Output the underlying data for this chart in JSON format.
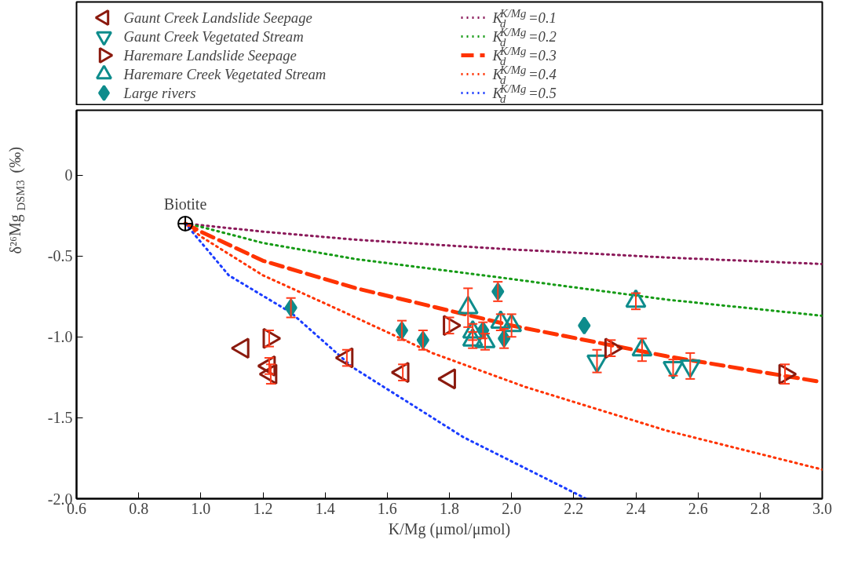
{
  "chart_data": {
    "type": "scatter",
    "xlabel": "K/Mg (μmol/μmol)",
    "ylabel": "δ²⁶Mg$_{DSM3}$ (‰)",
    "xlim": [
      0.6,
      3.0
    ],
    "ylim": [
      -2.0,
      0.4
    ],
    "xticks": [
      {
        "value": 0.6,
        "label": "0.6"
      },
      {
        "value": 0.8,
        "label": "0.8"
      },
      {
        "value": 1.0,
        "label": "1.0"
      },
      {
        "value": 1.2,
        "label": "1.2"
      },
      {
        "value": 1.4,
        "label": "1.4"
      },
      {
        "value": 1.6,
        "label": "1.6"
      },
      {
        "value": 1.8,
        "label": "1.8"
      },
      {
        "value": 2.0,
        "label": "2.0"
      },
      {
        "value": 2.2,
        "label": "2.2"
      },
      {
        "value": 2.4,
        "label": "2.4"
      },
      {
        "value": 2.6,
        "label": "2.6"
      },
      {
        "value": 2.8,
        "label": "2.8"
      },
      {
        "value": 3.0,
        "label": "3.0"
      }
    ],
    "yticks": [
      {
        "value": -2.0,
        "label": "-2.0"
      },
      {
        "value": -1.5,
        "label": "-1.5"
      },
      {
        "value": -1.0,
        "label": "-1.0"
      },
      {
        "value": -0.5,
        "label": "-0.5"
      },
      0
    ],
    "grid": false,
    "legend": "top",
    "annotations": [
      {
        "text": "Biotite",
        "x": 0.95,
        "y": -0.3
      }
    ],
    "series": [
      {
        "name": "Gaunt Creek Landslide Seepage",
        "marker": "triangle-left",
        "color": "#8b1a0e",
        "x": [
          1.135,
          1.22,
          1.225,
          1.47,
          1.65,
          1.8
        ],
        "values": [
          -1.07,
          -1.18,
          -1.23,
          -1.13,
          -1.22,
          -1.26
        ],
        "errors": [
          null,
          0.05,
          0.06,
          0.05,
          0.05,
          null
        ]
      },
      {
        "name": "Gaunt Creek Vegetated Stream",
        "marker": "triangle-down",
        "color": "#0e8c8c",
        "x": [
          2.275,
          2.52,
          2.575
        ],
        "values": [
          -1.15,
          -1.19,
          -1.18
        ],
        "errors": [
          0.07,
          0.05,
          0.08
        ]
      },
      {
        "name": "Haremare Landslide Seepage",
        "marker": "triangle-right",
        "color": "#8b1a0e",
        "x": [
          1.22,
          1.8,
          2.32,
          2.88
        ],
        "values": [
          -1.01,
          -0.93,
          -1.07,
          -1.23
        ],
        "errors": [
          0.05,
          0.05,
          0.05,
          0.06
        ]
      },
      {
        "name": "Haremare Creek Vegetated Stream",
        "marker": "triangle",
        "color": "#0e8c8c",
        "x": [
          1.86,
          1.875,
          1.875,
          1.915,
          1.965,
          2.0,
          2.4,
          2.42
        ],
        "values": [
          -0.82,
          -0.97,
          -1.02,
          -1.03,
          -0.91,
          -0.93,
          -0.78,
          -1.08
        ],
        "errors": [
          0.12,
          0.05,
          0.05,
          0.05,
          0.05,
          0.07,
          0.05,
          0.07
        ]
      },
      {
        "name": "Large rivers",
        "marker": "diamond",
        "color": "#0e8c8c",
        "x": [
          1.29,
          1.647,
          1.715,
          1.956,
          1.908,
          1.976,
          2.234
        ],
        "values": [
          -0.82,
          -0.96,
          -1.02,
          -0.72,
          -0.96,
          -1.01,
          -0.93
        ],
        "errors": [
          0.06,
          0.06,
          0.06,
          0.06,
          0.05,
          0.06,
          null
        ]
      },
      {
        "marker": "circle",
        "color": "#000000",
        "x": [
          0.95
        ],
        "values": [
          -0.3
        ]
      },
      {
        "name": "K$_{d}$$^{K/Mg}$=0.1",
        "type": "line",
        "line_style": "dotted",
        "color": "#8b1a5a",
        "x": [
          0.95,
          1.0,
          1.2,
          1.5,
          2.0,
          2.5,
          3.0
        ],
        "values": [
          -0.3,
          -0.31,
          -0.35,
          -0.4,
          -0.46,
          -0.51,
          -0.55
        ]
      },
      {
        "name": "K$_{d}$$^{K/Mg}$=0.2",
        "type": "line",
        "line_style": "dotted",
        "color": "#169b16",
        "x": [
          0.95,
          1.0,
          1.2,
          1.5,
          1.95,
          2.5,
          3.0
        ],
        "values": [
          -0.3,
          -0.32,
          -0.42,
          -0.52,
          -0.63,
          -0.77,
          -0.87
        ]
      },
      {
        "name": "K$_{d}$$^{K/Mg}$=0.3",
        "type": "line",
        "line_style": "dashed",
        "color": "#ff3300",
        "x": [
          0.95,
          1.0,
          1.2,
          1.5,
          2.0,
          2.5,
          3.0
        ],
        "values": [
          -0.3,
          -0.35,
          -0.53,
          -0.7,
          -0.93,
          -1.12,
          -1.28
        ]
      },
      {
        "name": "K$_{d}$$^{K/Mg}$=0.4",
        "type": "line",
        "line_style": "dotted",
        "color": "#ff3300",
        "x": [
          0.95,
          1.0,
          1.2,
          1.43,
          1.745,
          2.045,
          2.5,
          3.0
        ],
        "values": [
          -0.3,
          -0.38,
          -0.62,
          -0.82,
          -1.1,
          -1.31,
          -1.58,
          -1.82
        ]
      },
      {
        "name": "K$_{d}$$^{K/Mg}$=0.5",
        "type": "line",
        "line_style": "dotted",
        "color": "#1a3cff",
        "x": [
          0.95,
          1.09,
          1.29,
          1.49,
          1.845,
          2.24
        ],
        "values": [
          -0.3,
          -0.62,
          -0.85,
          -1.19,
          -1.62,
          -2.0
        ]
      }
    ]
  }
}
